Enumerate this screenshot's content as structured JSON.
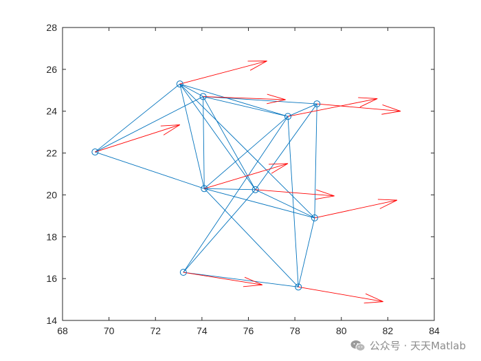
{
  "chart_data": {
    "type": "scatter",
    "title": "",
    "xlabel": "",
    "ylabel": "",
    "xlim": [
      68,
      84
    ],
    "ylim": [
      14,
      28
    ],
    "xticks": [
      68,
      70,
      72,
      74,
      76,
      78,
      80,
      82,
      84
    ],
    "yticks": [
      14,
      16,
      18,
      20,
      22,
      24,
      26,
      28
    ],
    "grid": false,
    "colors": {
      "nodes": "#0072BD",
      "edges": "#0072BD",
      "arrows": "#FF0000",
      "axes": "#262626"
    },
    "nodes": [
      {
        "x": 69.4,
        "y": 22.05
      },
      {
        "x": 73.05,
        "y": 25.3
      },
      {
        "x": 74.05,
        "y": 24.7
      },
      {
        "x": 77.7,
        "y": 23.75
      },
      {
        "x": 78.95,
        "y": 24.35
      },
      {
        "x": 74.1,
        "y": 20.3
      },
      {
        "x": 76.3,
        "y": 20.25
      },
      {
        "x": 78.85,
        "y": 18.9
      },
      {
        "x": 73.2,
        "y": 16.3
      },
      {
        "x": 78.15,
        "y": 15.6
      }
    ],
    "edges": [
      [
        0,
        1
      ],
      [
        0,
        2
      ],
      [
        0,
        5
      ],
      [
        1,
        2
      ],
      [
        1,
        3
      ],
      [
        1,
        5
      ],
      [
        1,
        6
      ],
      [
        1,
        7
      ],
      [
        2,
        3
      ],
      [
        2,
        4
      ],
      [
        2,
        5
      ],
      [
        2,
        6
      ],
      [
        3,
        4
      ],
      [
        3,
        5
      ],
      [
        3,
        8
      ],
      [
        3,
        9
      ],
      [
        4,
        6
      ],
      [
        4,
        7
      ],
      [
        5,
        6
      ],
      [
        5,
        7
      ],
      [
        5,
        9
      ],
      [
        6,
        7
      ],
      [
        6,
        8
      ],
      [
        7,
        9
      ],
      [
        8,
        9
      ]
    ],
    "arrows": [
      {
        "x": 69.4,
        "y": 22.05,
        "dx": 3.65,
        "dy": 1.3
      },
      {
        "x": 73.05,
        "y": 25.3,
        "dx": 3.75,
        "dy": 1.1
      },
      {
        "x": 74.05,
        "y": 24.7,
        "dx": 3.55,
        "dy": -0.15
      },
      {
        "x": 77.7,
        "y": 23.75,
        "dx": 3.85,
        "dy": 0.85
      },
      {
        "x": 78.95,
        "y": 24.35,
        "dx": 3.6,
        "dy": -0.35
      },
      {
        "x": 74.1,
        "y": 20.3,
        "dx": 3.6,
        "dy": 1.2
      },
      {
        "x": 76.3,
        "y": 20.25,
        "dx": 3.4,
        "dy": -0.3
      },
      {
        "x": 78.85,
        "y": 18.9,
        "dx": 3.55,
        "dy": 0.85
      },
      {
        "x": 73.2,
        "y": 16.3,
        "dx": 3.4,
        "dy": -0.6
      },
      {
        "x": 78.15,
        "y": 15.6,
        "dx": 3.65,
        "dy": -0.7
      }
    ]
  },
  "watermark": {
    "text": "公众号 · 天天Matlab",
    "icon": "wechat-icon"
  }
}
